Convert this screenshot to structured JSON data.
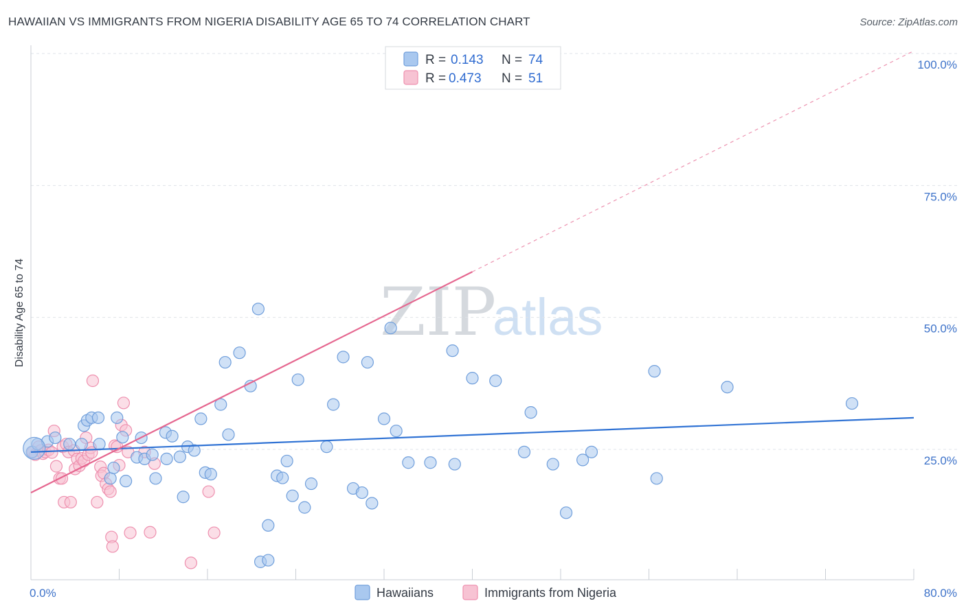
{
  "header": {
    "title": "HAWAIIAN VS IMMIGRANTS FROM NIGERIA DISABILITY AGE 65 TO 74 CORRELATION CHART",
    "source": "Source: ZipAtlas.com"
  },
  "watermark": {
    "zip": "ZIP",
    "atlas": "atlas"
  },
  "colors": {
    "blue_fill": "#a9c8ef",
    "blue_stroke": "#6f9edb",
    "blue_line": "#2f72d4",
    "pink_fill": "#f7c3d3",
    "pink_stroke": "#ee8fae",
    "pink_line": "#e5668f",
    "grid": "#dfe3e8",
    "axis_text": "#3d72c9"
  },
  "legend": {
    "rows": [
      {
        "r_label": "R =",
        "r_value": "0.143",
        "n_label": "N =",
        "n_value": "74",
        "series": "Hawaiians"
      },
      {
        "r_label": "R =",
        "r_value": "0.473",
        "n_label": "N =",
        "n_value": "51",
        "series": "Immigrants from Nigeria"
      }
    ]
  },
  "bottom_legend": [
    "Hawaiians",
    "Immigrants from Nigeria"
  ],
  "chart_data": {
    "type": "scatter",
    "title": "HAWAIIAN VS IMMIGRANTS FROM NIGERIA DISABILITY AGE 65 TO 74 CORRELATION CHART",
    "xlabel": "",
    "ylabel": "Disability Age 65 to 74",
    "xlim": [
      0,
      80
    ],
    "ylim": [
      0,
      103
    ],
    "x_tick_labels": [
      "0.0%",
      "80.0%"
    ],
    "y_tick_labels": [
      "25.0%",
      "50.0%",
      "75.0%",
      "100.0%"
    ],
    "y_ticks": [
      25,
      50,
      75,
      100
    ],
    "legend_position": "top-center",
    "series": [
      {
        "name": "Hawaiians",
        "r": 0.143,
        "n": 74,
        "trend": {
          "x0": 0,
          "y0": 24.5,
          "x1": 80,
          "y1": 31.0,
          "dashed_until": null
        },
        "points": [
          [
            0.1,
            24.5
          ],
          [
            0.6,
            26
          ],
          [
            1.5,
            26.5
          ],
          [
            2.2,
            27.2
          ],
          [
            3.5,
            26
          ],
          [
            4.6,
            26
          ],
          [
            4.8,
            29.5
          ],
          [
            5.1,
            30.5
          ],
          [
            5.5,
            31
          ],
          [
            6.1,
            31
          ],
          [
            6.2,
            26
          ],
          [
            7.2,
            19.5
          ],
          [
            7.5,
            21.5
          ],
          [
            7.8,
            31
          ],
          [
            8.3,
            27.3
          ],
          [
            8.6,
            19
          ],
          [
            9.6,
            23.5
          ],
          [
            10.0,
            27.2
          ],
          [
            10.3,
            23.2
          ],
          [
            11.0,
            24.0
          ],
          [
            11.3,
            19.5
          ],
          [
            12.2,
            28.2
          ],
          [
            12.3,
            23.2
          ],
          [
            12.8,
            27.5
          ],
          [
            13.5,
            23.6
          ],
          [
            13.8,
            16
          ],
          [
            14.2,
            25.5
          ],
          [
            14.8,
            24.8
          ],
          [
            15.4,
            30.8
          ],
          [
            15.8,
            20.6
          ],
          [
            16.3,
            20.3
          ],
          [
            17.2,
            33.5
          ],
          [
            17.6,
            41.5
          ],
          [
            17.9,
            27.8
          ],
          [
            18.9,
            43.3
          ],
          [
            19.9,
            37
          ],
          [
            20.6,
            51.6
          ],
          [
            20.8,
            3.7
          ],
          [
            21.5,
            10.6
          ],
          [
            21.5,
            4.0
          ],
          [
            22.3,
            20
          ],
          [
            22.8,
            19.6
          ],
          [
            23.2,
            22.8
          ],
          [
            23.7,
            16.2
          ],
          [
            24.2,
            38.2
          ],
          [
            24.8,
            14
          ],
          [
            25.4,
            18.5
          ],
          [
            26.8,
            25.5
          ],
          [
            27.4,
            33.5
          ],
          [
            28.3,
            42.5
          ],
          [
            29.2,
            17.6
          ],
          [
            30.0,
            16.8
          ],
          [
            30.5,
            41.5
          ],
          [
            30.9,
            14.8
          ],
          [
            32.0,
            30.8
          ],
          [
            32.6,
            48
          ],
          [
            33.1,
            28.5
          ],
          [
            34.2,
            22.5
          ],
          [
            36.2,
            22.5
          ],
          [
            38.2,
            43.7
          ],
          [
            38.4,
            22.2
          ],
          [
            40.0,
            38.5
          ],
          [
            42.1,
            38
          ],
          [
            44.7,
            24.5
          ],
          [
            45.3,
            32
          ],
          [
            47.3,
            22.2
          ],
          [
            48.5,
            13
          ],
          [
            50.0,
            23
          ],
          [
            50.8,
            24.5
          ],
          [
            56.5,
            39.8
          ],
          [
            56.7,
            19.5
          ],
          [
            63.1,
            36.8
          ],
          [
            74.4,
            33.7
          ],
          [
            0.3,
            25.2
          ]
        ]
      },
      {
        "name": "Immigrants from Nigeria",
        "r": 0.473,
        "n": 51,
        "trend": {
          "x0": 0,
          "y0": 16.8,
          "x1": 80,
          "y1": 100.5,
          "solid_until_x": 40
        },
        "points": [
          [
            0.2,
            24.5
          ],
          [
            0.4,
            24
          ],
          [
            0.7,
            25.5
          ],
          [
            0.9,
            24.8
          ],
          [
            1.1,
            24.2
          ],
          [
            1.3,
            24.5
          ],
          [
            1.6,
            24.9
          ],
          [
            1.9,
            24.4
          ],
          [
            2.1,
            28.5
          ],
          [
            2.3,
            21.8
          ],
          [
            2.6,
            19.5
          ],
          [
            2.8,
            19.5
          ],
          [
            2.9,
            25.5
          ],
          [
            3.0,
            15
          ],
          [
            3.2,
            26
          ],
          [
            3.4,
            24.5
          ],
          [
            3.6,
            15
          ],
          [
            3.9,
            24.8
          ],
          [
            4.0,
            21.3
          ],
          [
            4.2,
            23.2
          ],
          [
            4.4,
            21.9
          ],
          [
            4.6,
            23.3
          ],
          [
            4.8,
            22.8
          ],
          [
            5.0,
            27.2
          ],
          [
            5.2,
            24.0
          ],
          [
            5.4,
            25.3
          ],
          [
            5.5,
            24.4
          ],
          [
            5.6,
            38
          ],
          [
            6.0,
            15.0
          ],
          [
            6.3,
            21.7
          ],
          [
            6.4,
            20.0
          ],
          [
            6.6,
            20.5
          ],
          [
            6.8,
            18.5
          ],
          [
            7.0,
            17.5
          ],
          [
            7.2,
            17.0
          ],
          [
            7.3,
            8.4
          ],
          [
            7.4,
            6.6
          ],
          [
            7.6,
            25.7
          ],
          [
            7.8,
            25.5
          ],
          [
            8.0,
            22
          ],
          [
            8.2,
            29.6
          ],
          [
            8.4,
            33.8
          ],
          [
            8.6,
            28.6
          ],
          [
            8.8,
            24.5
          ],
          [
            9.0,
            9.2
          ],
          [
            10.3,
            24.5
          ],
          [
            10.8,
            9.3
          ],
          [
            11.2,
            22.3
          ],
          [
            14.5,
            3.5
          ],
          [
            16.1,
            17.0
          ],
          [
            16.6,
            9.2
          ]
        ]
      }
    ]
  }
}
